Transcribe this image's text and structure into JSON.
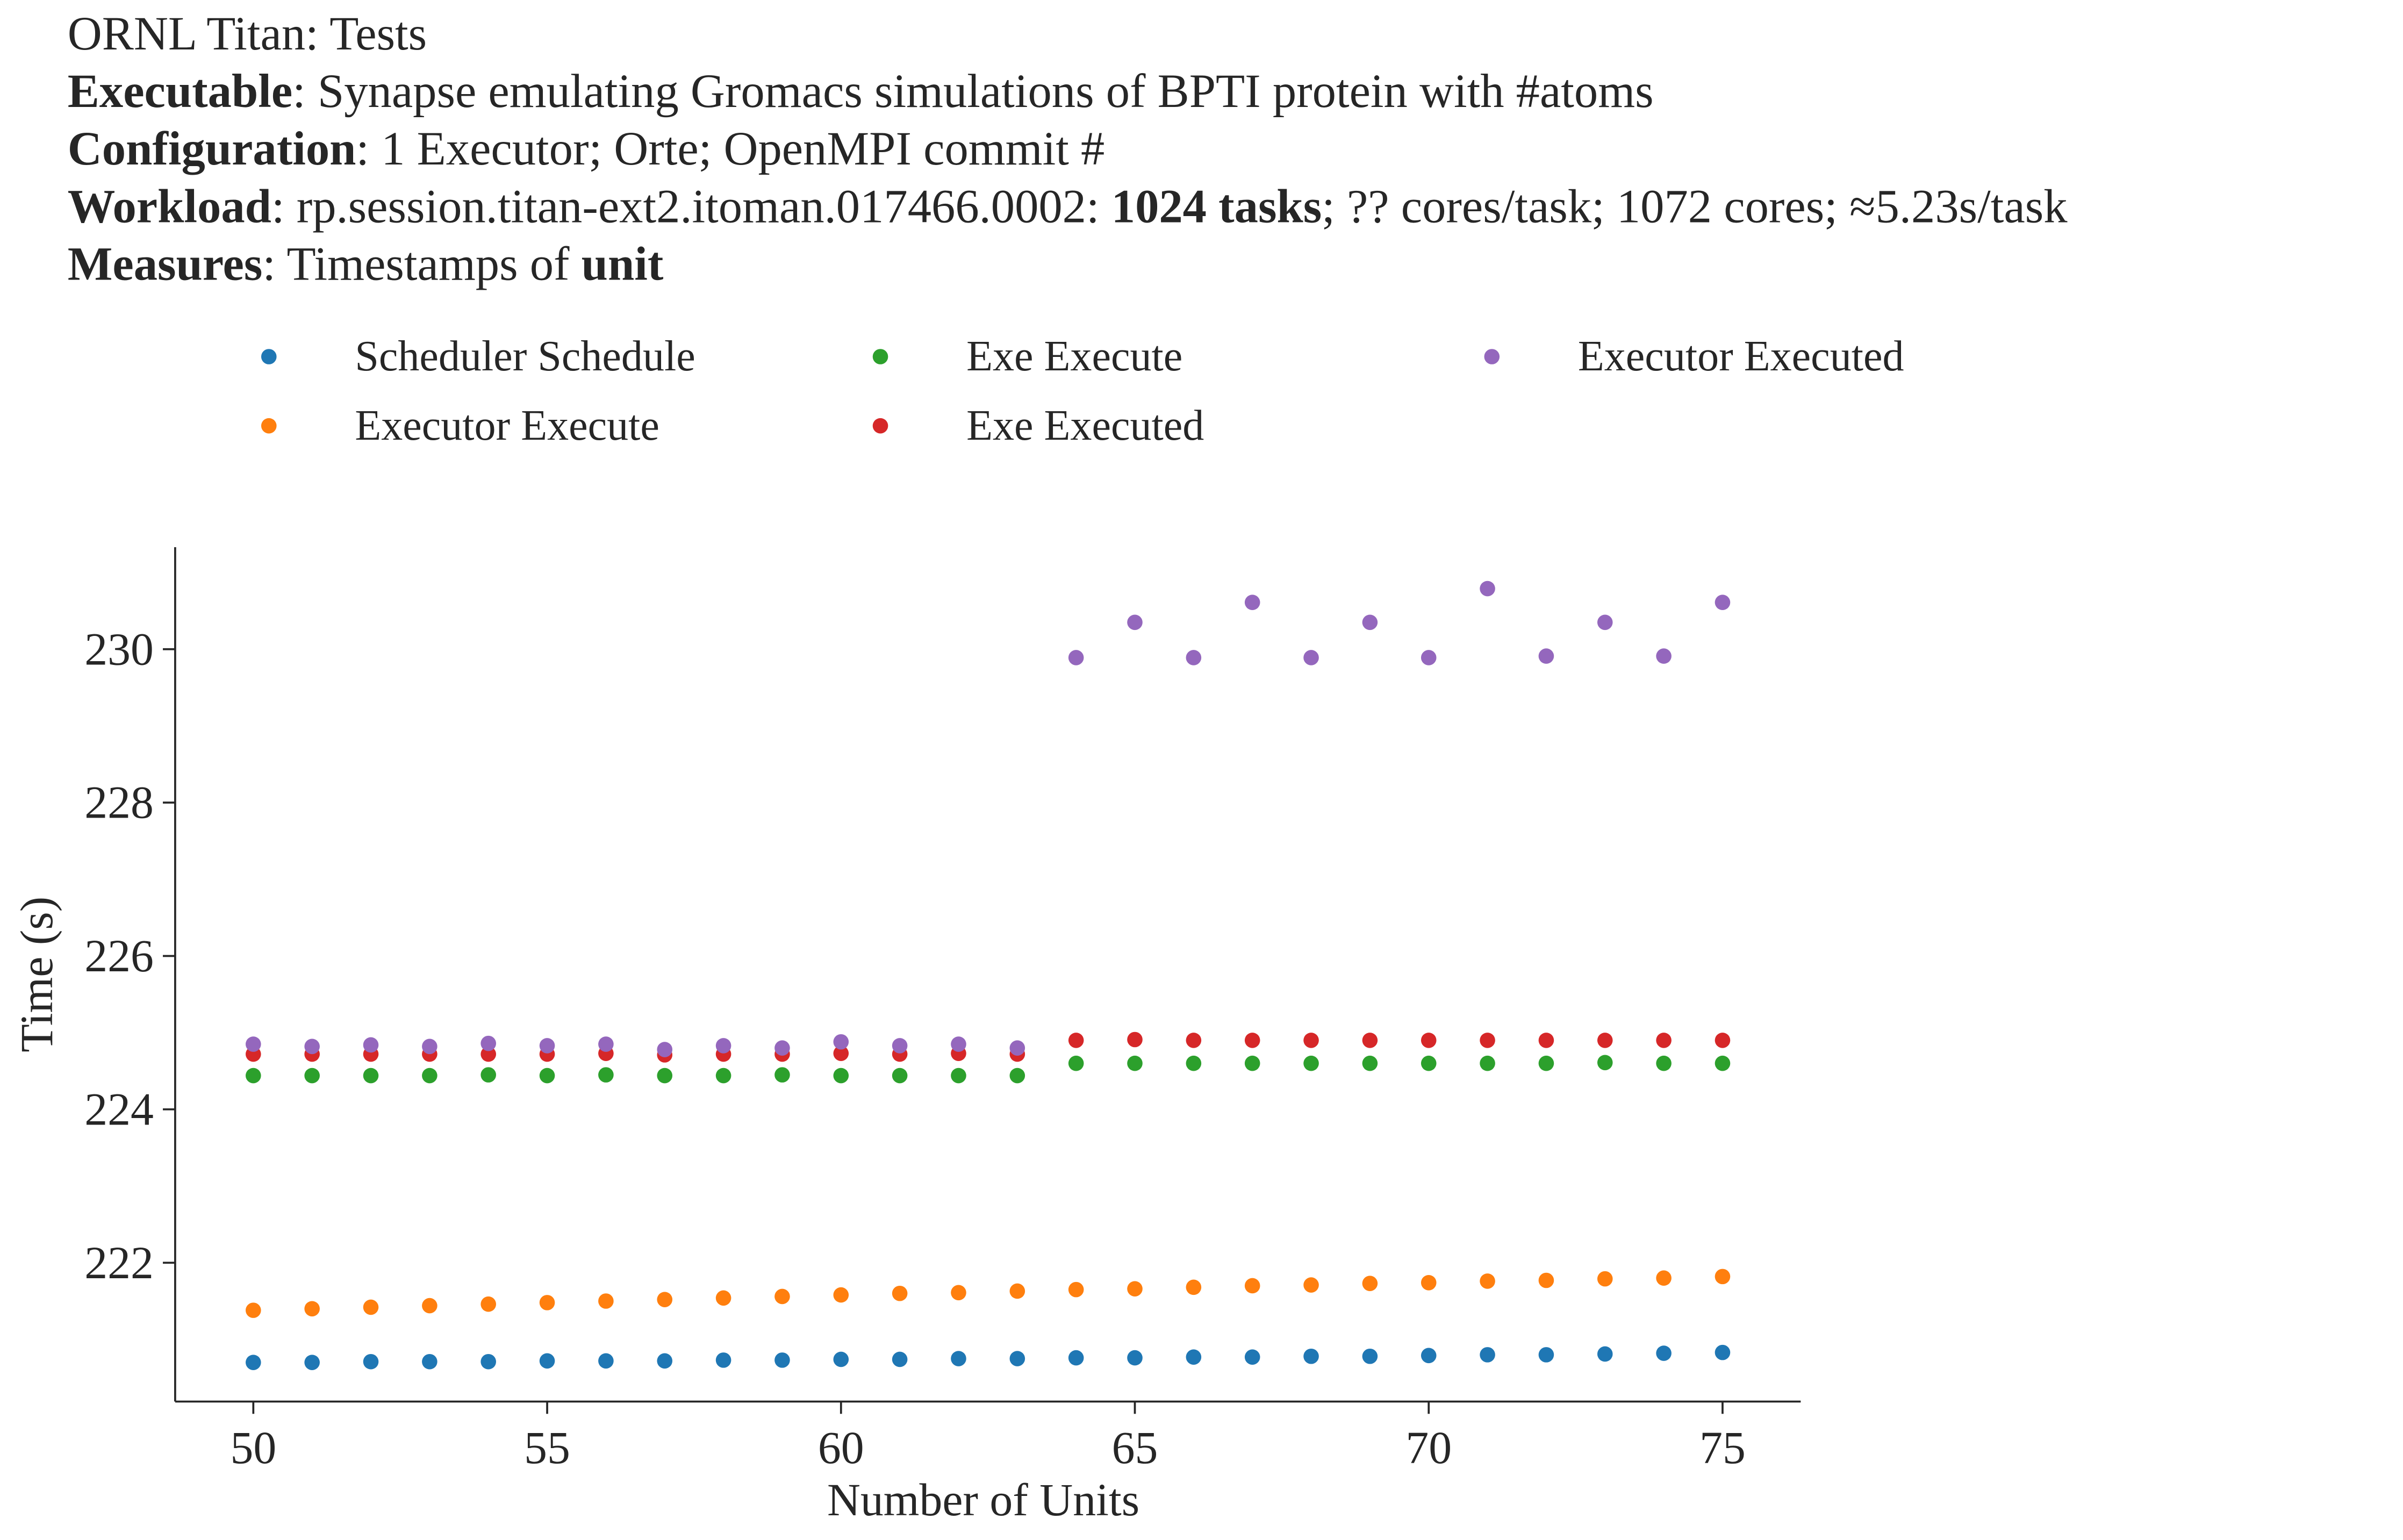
{
  "chart_data": {
    "type": "scatter",
    "title_lines": [
      [
        {
          "text": "ORNL Titan: Tests",
          "bold": false
        }
      ],
      [
        {
          "text": "Executable",
          "bold": true
        },
        {
          "text": ": Synapse emulating Gromacs simulations of BPTI protein with #atoms",
          "bold": false
        }
      ],
      [
        {
          "text": "Configuration",
          "bold": true
        },
        {
          "text": ": 1 Executor; Orte; OpenMPI commit #",
          "bold": false
        }
      ],
      [
        {
          "text": "Workload",
          "bold": true
        },
        {
          "text": ": rp.session.titan-ext2.itoman.017466.0002: ",
          "bold": false
        },
        {
          "text": "1024 tasks",
          "bold": true
        },
        {
          "text": "; ?? cores/task; 1072 cores; ≈5.23s/task",
          "bold": false
        }
      ],
      [
        {
          "text": "Measures",
          "bold": true
        },
        {
          "text": ": Timestamps of ",
          "bold": false
        },
        {
          "text": "unit",
          "bold": true
        }
      ]
    ],
    "xlabel": "Number of Units",
    "ylabel": "Time (s)",
    "x": [
      50,
      51,
      52,
      53,
      54,
      55,
      56,
      57,
      58,
      59,
      60,
      61,
      62,
      63,
      64,
      65,
      66,
      67,
      68,
      69,
      70,
      71,
      72,
      73,
      74,
      75
    ],
    "xlim": [
      48.67,
      76.33
    ],
    "xticks": [
      50,
      55,
      60,
      65,
      70,
      75
    ],
    "ylim": [
      220.19,
      231.33
    ],
    "yticks": [
      222,
      224,
      226,
      228,
      230
    ],
    "legend_ncol": 3,
    "series": [
      {
        "name": "Scheduler Schedule",
        "color": "#1f77b4",
        "values": [
          220.7,
          220.7,
          220.71,
          220.71,
          220.71,
          220.72,
          220.72,
          220.72,
          220.73,
          220.73,
          220.74,
          220.74,
          220.75,
          220.75,
          220.76,
          220.76,
          220.77,
          220.77,
          220.78,
          220.78,
          220.79,
          220.8,
          220.8,
          220.81,
          220.82,
          220.83
        ]
      },
      {
        "name": "Executor Execute",
        "color": "#ff7f0e",
        "values": [
          221.38,
          221.4,
          221.42,
          221.44,
          221.46,
          221.48,
          221.5,
          221.52,
          221.54,
          221.56,
          221.58,
          221.6,
          221.61,
          221.63,
          221.65,
          221.66,
          221.68,
          221.7,
          221.71,
          221.73,
          221.74,
          221.76,
          221.77,
          221.79,
          221.8,
          221.82
        ]
      },
      {
        "name": "Exe Execute",
        "color": "#2ca02c",
        "values": [
          224.44,
          224.44,
          224.44,
          224.44,
          224.45,
          224.44,
          224.45,
          224.44,
          224.44,
          224.45,
          224.44,
          224.44,
          224.44,
          224.44,
          224.6,
          224.6,
          224.6,
          224.6,
          224.6,
          224.6,
          224.6,
          224.6,
          224.6,
          224.61,
          224.6,
          224.6
        ]
      },
      {
        "name": "Exe Executed",
        "color": "#d62728",
        "values": [
          224.72,
          224.72,
          224.72,
          224.72,
          224.72,
          224.72,
          224.73,
          224.71,
          224.72,
          224.72,
          224.73,
          224.72,
          224.73,
          224.72,
          224.9,
          224.91,
          224.9,
          224.9,
          224.9,
          224.9,
          224.9,
          224.9,
          224.9,
          224.9,
          224.9,
          224.9
        ]
      },
      {
        "name": "Executor Executed",
        "color": "#9467bd",
        "values": [
          224.85,
          224.82,
          224.84,
          224.82,
          224.86,
          224.83,
          224.85,
          224.78,
          224.83,
          224.8,
          224.88,
          224.83,
          224.85,
          224.8,
          229.89,
          230.35,
          229.89,
          230.61,
          229.89,
          230.35,
          229.89,
          230.79,
          229.91,
          230.35,
          229.91,
          230.61
        ]
      }
    ]
  }
}
